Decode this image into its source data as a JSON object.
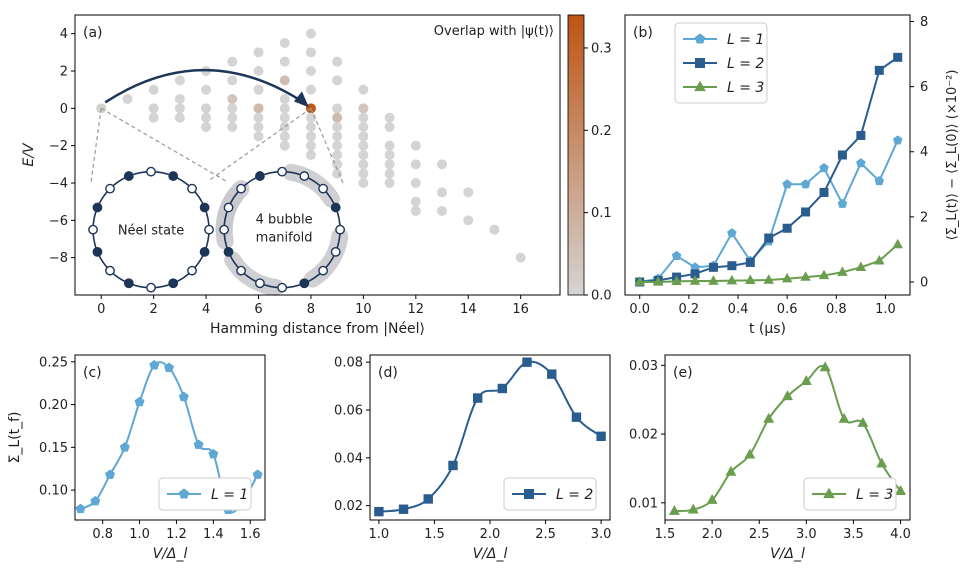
{
  "chart_data": [
    {
      "id": "a",
      "type": "scatter",
      "panel_label": "(a)",
      "xlabel": "Hamming distance from |Néel⟩",
      "ylabel": "E/V",
      "xlim": [
        -1,
        17.5
      ],
      "ylim": [
        -10,
        5
      ],
      "xticks": [
        0,
        2,
        4,
        6,
        8,
        10,
        12,
        14,
        16
      ],
      "yticks": [
        -8,
        -6,
        -4,
        -2,
        0,
        2,
        4
      ],
      "colorbar": {
        "label": "Overlap with |ψ(t)⟩",
        "ticks": [
          0.0,
          0.1,
          0.2,
          0.3
        ],
        "range": [
          0,
          0.34
        ],
        "low_color": "#d4d4d4",
        "high_color": "#bd5413"
      },
      "annotations": [
        "Néel state",
        "4 bubble",
        "manifold"
      ],
      "points_by_column": [
        {
          "x": 0,
          "y": [
            0
          ],
          "overlap": [
            0.01
          ]
        },
        {
          "x": 1,
          "y": [
            0.5
          ],
          "overlap": [
            0.0
          ]
        },
        {
          "x": 2,
          "y": [
            1,
            0,
            -0.5
          ],
          "overlap": [
            0.0,
            0.0,
            0.0
          ]
        },
        {
          "x": 3,
          "y": [
            1.5,
            0.5,
            0,
            -0.5
          ],
          "overlap": [
            0.0,
            0.0,
            0.0,
            0.0
          ]
        },
        {
          "x": 4,
          "y": [
            2,
            1,
            0,
            -0.5,
            -1
          ],
          "overlap": [
            0.0,
            0.0,
            0.0,
            0.0,
            0.0
          ]
        },
        {
          "x": 5,
          "y": [
            2.5,
            1.5,
            0.5,
            0,
            -0.5,
            -1
          ],
          "overlap": [
            0.0,
            0.0,
            0.04,
            0.0,
            0.0,
            0.0
          ]
        },
        {
          "x": 6,
          "y": [
            3,
            2,
            1,
            0,
            -0.5,
            -1,
            -1.5
          ],
          "overlap": [
            0.0,
            0.0,
            0.0,
            0.07,
            0.0,
            0.0,
            0.0
          ]
        },
        {
          "x": 7,
          "y": [
            3.5,
            2.5,
            1.5,
            0.5,
            0,
            -0.5,
            -1,
            -1.5,
            -2
          ],
          "overlap": [
            0.0,
            0.0,
            0.06,
            0.0,
            0.0,
            0.0,
            0.0,
            0.0,
            0.0
          ]
        },
        {
          "x": 8,
          "y": [
            4,
            3,
            2,
            1,
            0,
            -0.5,
            -1,
            -1.5,
            -2,
            -2.5
          ],
          "overlap": [
            0.0,
            0.0,
            0.0,
            0.0,
            0.33,
            0.0,
            0.0,
            0.0,
            0.0,
            0.0
          ]
        },
        {
          "x": 9,
          "y": [
            2.5,
            1.5,
            0,
            -0.5,
            -1,
            -1.5,
            -2,
            -2.5,
            -3,
            -3.5
          ],
          "overlap": [
            0.0,
            0.0,
            0.0,
            0.07,
            0.0,
            0.0,
            0.0,
            0.0,
            0.0,
            0.0
          ]
        },
        {
          "x": 10,
          "y": [
            1,
            0,
            -0.5,
            -1,
            -1.5,
            -2,
            -2.5,
            -3,
            -3.5,
            -4
          ],
          "overlap": [
            0.0,
            0.04,
            0.0,
            0.0,
            0.0,
            0.0,
            0.0,
            0.0,
            0.0,
            0.0
          ]
        },
        {
          "x": 11,
          "y": [
            -0.5,
            -1,
            -2,
            -2.5,
            -3,
            -3.5,
            -4
          ],
          "overlap": [
            0.0,
            0.0,
            0.0,
            0.0,
            0.0,
            0.0,
            0.0
          ]
        },
        {
          "x": 12,
          "y": [
            -2,
            -3,
            -4,
            -5,
            -5.5
          ],
          "overlap": [
            0.0,
            0.0,
            0.0,
            0.0,
            0.0
          ]
        },
        {
          "x": 13,
          "y": [
            -3,
            -4.5,
            -5.5
          ],
          "overlap": [
            0.0,
            0.0,
            0.0
          ]
        },
        {
          "x": 14,
          "y": [
            -4.5,
            -6
          ],
          "overlap": [
            0.0,
            0.0
          ]
        },
        {
          "x": 15,
          "y": [
            -6.5
          ],
          "overlap": [
            0.0
          ]
        },
        {
          "x": 16,
          "y": [
            -8
          ],
          "overlap": [
            0.0
          ]
        }
      ],
      "arrow": {
        "from": [
          0,
          0
        ],
        "to": [
          8,
          0
        ]
      }
    },
    {
      "id": "b",
      "type": "line",
      "panel_label": "(b)",
      "xlabel": "t (μs)",
      "ylabel": "⟨Σ_L(t)⟩ − ⟨Σ_L(0)⟩ (×10⁻²)",
      "xlim": [
        -0.06,
        1.1
      ],
      "ylim": [
        -0.4,
        8.2
      ],
      "xticks": [
        0.0,
        0.2,
        0.4,
        0.6,
        0.8,
        1.0
      ],
      "yticks": [
        0,
        2,
        4,
        6,
        8
      ],
      "legend": "top-left",
      "x": [
        0.0,
        0.075,
        0.15,
        0.225,
        0.3,
        0.375,
        0.45,
        0.525,
        0.6,
        0.675,
        0.75,
        0.825,
        0.9,
        0.975,
        1.05
      ],
      "series": [
        {
          "name": "L = 1",
          "legend_label": "L = 1",
          "color": "#5fa8d3",
          "marker": "pentagon",
          "values": [
            0.0,
            0.1,
            0.8,
            0.45,
            0.5,
            1.5,
            0.65,
            1.25,
            3.0,
            3.0,
            3.5,
            2.4,
            3.65,
            3.1,
            4.35
          ]
        },
        {
          "name": "L = 2",
          "legend_label": "L = 2",
          "color": "#2a5d8f",
          "marker": "square",
          "values": [
            0.0,
            0.05,
            0.15,
            0.25,
            0.45,
            0.5,
            0.6,
            1.35,
            1.65,
            2.15,
            2.75,
            3.9,
            4.5,
            6.5,
            6.9
          ]
        },
        {
          "name": "L = 3",
          "legend_label": "L = 3",
          "color": "#6a9e4f",
          "marker": "triangle",
          "values": [
            0.0,
            0.0,
            0.02,
            0.03,
            0.03,
            0.04,
            0.05,
            0.06,
            0.1,
            0.15,
            0.2,
            0.3,
            0.45,
            0.65,
            1.15
          ]
        }
      ]
    },
    {
      "id": "c",
      "type": "line",
      "panel_label": "(c)",
      "xlabel": "V/Δ_l",
      "ylabel": "Σ_L(t_f)",
      "xlim": [
        0.65,
        1.68
      ],
      "ylim": [
        0.065,
        0.258
      ],
      "xticks": [
        0.8,
        1.0,
        1.2,
        1.4,
        1.6
      ],
      "yticks": [
        0.1,
        0.15,
        0.2,
        0.25
      ],
      "ytick_labels": [
        "0.10",
        "0.15",
        "0.20",
        "0.25"
      ],
      "legend": "bottom-right",
      "series": [
        {
          "name": "L = 1",
          "legend_label": "L = 1",
          "color": "#5fa8d3",
          "marker": "pentagon",
          "x": [
            0.68,
            0.76,
            0.84,
            0.92,
            1.0,
            1.08,
            1.16,
            1.24,
            1.32,
            1.4,
            1.48,
            1.56,
            1.64
          ],
          "values": [
            0.078,
            0.087,
            0.118,
            0.15,
            0.203,
            0.246,
            0.243,
            0.209,
            0.153,
            0.142,
            0.077,
            0.087,
            0.118
          ]
        }
      ]
    },
    {
      "id": "d",
      "type": "line",
      "panel_label": "(d)",
      "xlabel": "V/Δ_l",
      "ylabel": "",
      "xlim": [
        0.92,
        3.08
      ],
      "ylim": [
        0.014,
        0.083
      ],
      "xticks": [
        1.0,
        1.5,
        2.0,
        2.5,
        3.0
      ],
      "yticks": [
        0.02,
        0.04,
        0.06,
        0.08
      ],
      "legend": "bottom-right",
      "series": [
        {
          "name": "L = 2",
          "legend_label": "L = 2",
          "color": "#2a5d8f",
          "marker": "square",
          "x": [
            1.0,
            1.222,
            1.444,
            1.667,
            1.889,
            2.111,
            2.333,
            2.556,
            2.778,
            3.0
          ],
          "values": [
            0.0175,
            0.0185,
            0.0228,
            0.0368,
            0.065,
            0.069,
            0.08,
            0.075,
            0.057,
            0.049
          ]
        }
      ]
    },
    {
      "id": "e",
      "type": "line",
      "panel_label": "(e)",
      "xlabel": "V/Δ_l",
      "ylabel": "",
      "xlim": [
        1.5,
        4.1
      ],
      "ylim": [
        0.0075,
        0.0315
      ],
      "xticks": [
        1.5,
        2.0,
        2.5,
        3.0,
        3.5,
        4.0
      ],
      "yticks": [
        0.01,
        0.02,
        0.03
      ],
      "legend": "bottom-right",
      "series": [
        {
          "name": "L = 3",
          "legend_label": "L = 3",
          "color": "#6a9e4f",
          "marker": "triangle",
          "x": [
            1.6,
            1.8,
            2.0,
            2.2,
            2.4,
            2.6,
            2.8,
            3.0,
            3.2,
            3.4,
            3.6,
            3.8,
            4.0
          ],
          "values": [
            0.0088,
            0.009,
            0.0104,
            0.0145,
            0.017,
            0.0222,
            0.0255,
            0.0277,
            0.0297,
            0.0222,
            0.0216,
            0.0157,
            0.0117
          ]
        }
      ]
    }
  ]
}
